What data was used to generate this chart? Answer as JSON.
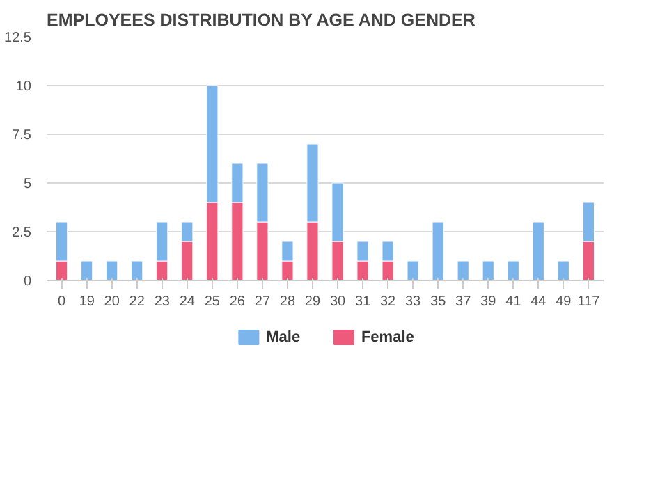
{
  "chart_data": {
    "type": "bar",
    "title": "EMPLOYEES DISTRIBUTION BY AGE AND GENDER",
    "stacked": true,
    "categories": [
      "0",
      "19",
      "20",
      "22",
      "23",
      "24",
      "25",
      "26",
      "27",
      "28",
      "29",
      "30",
      "31",
      "32",
      "33",
      "35",
      "37",
      "39",
      "41",
      "44",
      "49",
      "117"
    ],
    "series": [
      {
        "name": "Female",
        "color": "#ee5a7c",
        "values": [
          1,
          0,
          0,
          0,
          1,
          2,
          4,
          4,
          3,
          1,
          3,
          2,
          1,
          1,
          0,
          0,
          0,
          0,
          0,
          0,
          0,
          2
        ]
      },
      {
        "name": "Male",
        "color": "#7cb5ec",
        "values": [
          2,
          1,
          1,
          1,
          2,
          1,
          6,
          2,
          3,
          1,
          4,
          3,
          1,
          1,
          1,
          3,
          1,
          1,
          1,
          3,
          1,
          2
        ]
      }
    ],
    "ylim": [
      0,
      12.5
    ],
    "yticks": [
      0,
      2.5,
      5,
      7.5,
      10,
      12.5
    ],
    "grid": "y",
    "legend": "bottom"
  }
}
